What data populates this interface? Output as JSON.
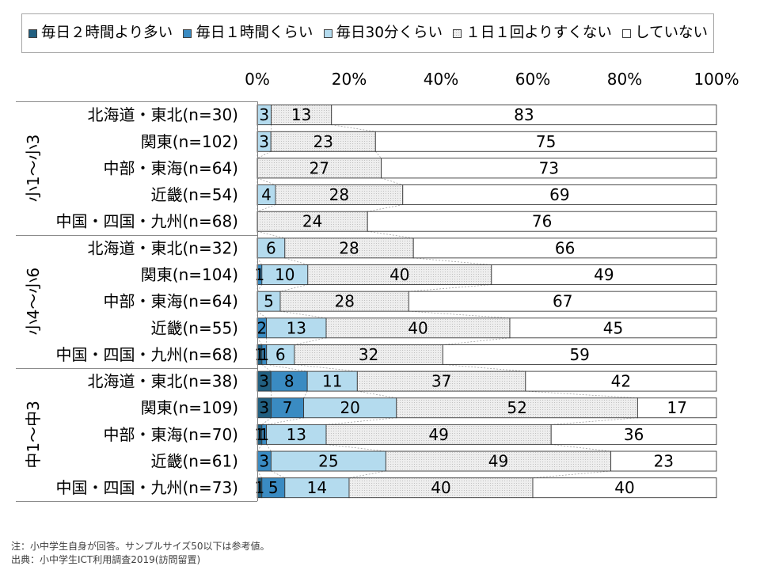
{
  "chart_data": {
    "type": "bar",
    "orientation": "horizontal",
    "stacked": "percent",
    "legend_position": "top",
    "grid": false,
    "xlim": [
      0,
      100
    ],
    "x_ticks": [
      "0%",
      "20%",
      "40%",
      "60%",
      "80%",
      "100%"
    ],
    "groups": [
      {
        "label": "小1～小3",
        "categories": [
          "北海道・東北(n=30)",
          "関東(n=102)",
          "中部・東海(n=64)",
          "近畿(n=54)",
          "中国・四国・九州(n=68)"
        ]
      },
      {
        "label": "小4～小6",
        "categories": [
          "北海道・東北(n=32)",
          "関東(n=104)",
          "中部・東海(n=64)",
          "近畿(n=55)",
          "中国・四国・九州(n=68)"
        ]
      },
      {
        "label": "中1～中3",
        "categories": [
          "北海道・東北(n=38)",
          "関東(n=109)",
          "中部・東海(n=70)",
          "近畿(n=61)",
          "中国・四国・九州(n=73)"
        ]
      }
    ],
    "series": [
      {
        "name": "毎日２時間より多い",
        "color": "#215f80",
        "values": [
          0,
          0,
          0,
          0,
          0,
          0,
          0,
          0,
          0,
          1,
          3,
          3,
          1,
          0,
          1
        ]
      },
      {
        "name": "毎日１時間くらい",
        "color": "#3a8bc2",
        "values": [
          0,
          0,
          0,
          0,
          0,
          0,
          1,
          0,
          2,
          1,
          8,
          7,
          1,
          3,
          5
        ]
      },
      {
        "name": "毎日30分くらい",
        "color": "#b4dbee",
        "values": [
          3,
          3,
          0,
          4,
          0,
          6,
          10,
          5,
          13,
          6,
          11,
          20,
          13,
          25,
          14
        ]
      },
      {
        "name": "１日１回よりすくない",
        "color": "#eeeeee",
        "pattern": "dots",
        "values": [
          13,
          23,
          27,
          28,
          24,
          28,
          40,
          28,
          40,
          32,
          37,
          52,
          49,
          49,
          40
        ]
      },
      {
        "name": "していない",
        "color": "#ffffff",
        "values": [
          83,
          75,
          73,
          69,
          76,
          66,
          49,
          67,
          45,
          59,
          42,
          17,
          36,
          23,
          40
        ]
      }
    ]
  },
  "notes": [
    "注：小中学生自身が回答。サンプルサイズ50以下は参考値。",
    "出典：小中学生ICT利用調査2019(訪問留置)"
  ]
}
